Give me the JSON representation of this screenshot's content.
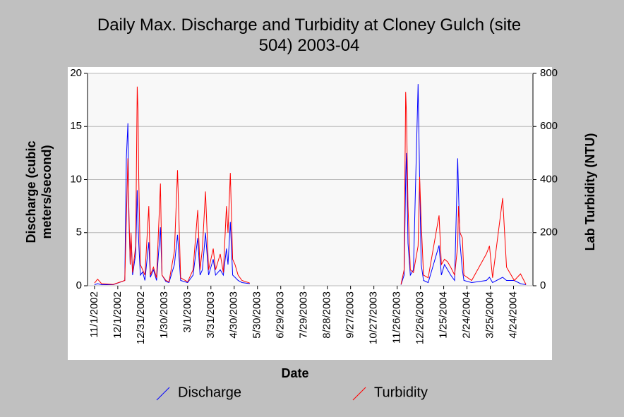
{
  "chart_data": {
    "type": "line",
    "title": "Daily Max. Discharge and Turbidity at Cloney Gulch (site 504) 2003-04",
    "x_label": "Date",
    "y_label": "Discharge (cubic meters/second)",
    "y2_label": "Lab Turbidity (NTU)",
    "xlim": [
      "2002-10-23",
      "2004-05-19"
    ],
    "xticks": [
      {
        "value": "2002-11-01",
        "label": "11/1/2002"
      },
      {
        "value": "2002-12-01",
        "label": "12/1/2002"
      },
      {
        "value": "2002-12-31",
        "label": "12/31/2002"
      },
      {
        "value": "2003-01-30",
        "label": "1/30/2003"
      },
      {
        "value": "2003-03-01",
        "label": "3/1/2003"
      },
      {
        "value": "2003-03-31",
        "label": "3/31/2003"
      },
      {
        "value": "2003-04-30",
        "label": "4/30/2003"
      },
      {
        "value": "2003-05-30",
        "label": "5/30/2003"
      },
      {
        "value": "2003-06-29",
        "label": "6/29/2003"
      },
      {
        "value": "2003-07-29",
        "label": "7/29/2003"
      },
      {
        "value": "2003-08-28",
        "label": "8/28/2003"
      },
      {
        "value": "2003-09-27",
        "label": "9/27/2003"
      },
      {
        "value": "2003-10-27",
        "label": "10/27/2003"
      },
      {
        "value": "2003-11-26",
        "label": "11/26/2003"
      },
      {
        "value": "2003-12-26",
        "label": "12/26/2003"
      },
      {
        "value": "2004-01-25",
        "label": "1/25/2004"
      },
      {
        "value": "2004-02-24",
        "label": "2/24/2004"
      },
      {
        "value": "2004-03-25",
        "label": "3/25/2004"
      },
      {
        "value": "2004-04-24",
        "label": "4/24/2004"
      }
    ],
    "ylim": [
      0,
      20
    ],
    "yticks": [
      0,
      5,
      10,
      15,
      20
    ],
    "y2lim": [
      0,
      800
    ],
    "y2ticks": [
      0,
      200,
      400,
      600,
      800
    ],
    "grid": true,
    "legend": "bottom",
    "x": [
      "2002-11-01",
      "2002-11-05",
      "2002-11-10",
      "2002-11-25",
      "2002-12-10",
      "2002-12-12",
      "2002-12-14",
      "2002-12-15",
      "2002-12-17",
      "2002-12-18",
      "2002-12-20",
      "2002-12-24",
      "2002-12-26",
      "2002-12-27",
      "2002-12-28",
      "2002-12-30",
      "2003-01-02",
      "2003-01-05",
      "2003-01-10",
      "2003-01-12",
      "2003-01-16",
      "2003-01-20",
      "2003-01-25",
      "2003-01-27",
      "2003-02-01",
      "2003-02-05",
      "2003-02-12",
      "2003-02-16",
      "2003-02-20",
      "2003-03-01",
      "2003-03-08",
      "2003-03-14",
      "2003-03-17",
      "2003-03-20",
      "2003-03-24",
      "2003-03-28",
      "2003-04-03",
      "2003-04-06",
      "2003-04-12",
      "2003-04-16",
      "2003-04-20",
      "2003-04-22",
      "2003-04-25",
      "2003-04-28",
      "2003-05-01",
      "2003-05-05",
      "2003-05-10",
      "2003-05-20",
      "2003-07-01",
      "2003-12-01",
      "2003-12-05",
      "2003-12-07",
      "2003-12-08",
      "2003-12-10",
      "2003-12-13",
      "2003-12-17",
      "2003-12-23",
      "2003-12-25",
      "2003-12-27",
      "2003-12-30",
      "2004-01-05",
      "2004-01-19",
      "2004-01-22",
      "2004-01-26",
      "2004-01-30",
      "2004-02-03",
      "2004-02-08",
      "2004-02-12",
      "2004-02-13",
      "2004-02-15",
      "2004-02-18",
      "2004-02-20",
      "2004-03-01",
      "2004-03-20",
      "2004-03-24",
      "2004-03-28",
      "2004-04-10",
      "2004-04-15",
      "2004-04-25",
      "2004-05-03",
      "2004-05-10"
    ],
    "series": [
      {
        "name": "Discharge",
        "color": "#0000ff",
        "values": [
          0.1,
          0.2,
          0.1,
          0.1,
          0.5,
          12,
          15.3,
          7,
          2,
          4.8,
          1,
          3,
          9,
          6,
          4,
          1,
          1.3,
          0.5,
          4.1,
          0.8,
          1.5,
          0.5,
          5.5,
          1,
          0.4,
          0.3,
          2,
          4.8,
          0.5,
          0.3,
          1,
          4.5,
          1,
          1.5,
          5,
          1,
          2.5,
          1,
          1.5,
          1,
          3.5,
          2,
          6,
          1,
          0.8,
          0.5,
          0.3,
          0.2,
          null,
          0.1,
          1,
          10,
          12.5,
          4,
          1,
          1.5,
          19,
          10,
          2,
          0.5,
          0.3,
          3.8,
          1,
          2,
          1.5,
          1,
          0.5,
          12,
          9,
          4,
          1.5,
          0.5,
          0.3,
          0.5,
          0.8,
          0.3,
          0.8,
          0.5,
          0.5,
          0.2,
          0.1
        ]
      },
      {
        "name": "Turbidity",
        "color": "#ff0000",
        "axis": "y2",
        "values": [
          10,
          25,
          8,
          5,
          20,
          250,
          480,
          320,
          80,
          200,
          50,
          150,
          750,
          660,
          400,
          80,
          60,
          40,
          300,
          40,
          70,
          30,
          385,
          40,
          20,
          15,
          130,
          435,
          30,
          15,
          60,
          285,
          60,
          140,
          355,
          60,
          140,
          60,
          120,
          50,
          300,
          200,
          425,
          100,
          80,
          40,
          20,
          10,
          null,
          5,
          60,
          730,
          650,
          300,
          60,
          50,
          150,
          410,
          240,
          40,
          30,
          265,
          80,
          100,
          90,
          70,
          40,
          150,
          300,
          200,
          180,
          40,
          20,
          120,
          150,
          30,
          330,
          70,
          20,
          45,
          5
        ]
      }
    ]
  }
}
